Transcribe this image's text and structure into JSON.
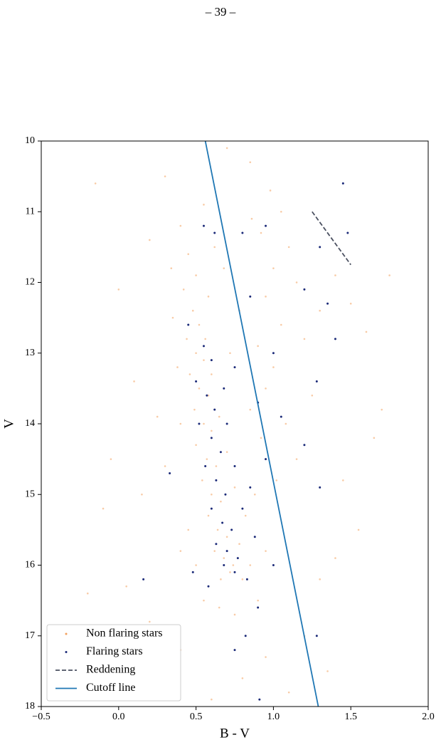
{
  "page_number": "– 39 –",
  "chart_data": {
    "type": "scatter",
    "xlabel": "B - V",
    "ylabel": "V",
    "xlim": [
      -0.5,
      2.0
    ],
    "ylim": [
      10,
      18
    ],
    "y_inverted": true,
    "xticks": [
      {
        "value": -0.5,
        "label": "−0.5"
      },
      {
        "value": 0,
        "label": "0.0"
      },
      0.5,
      {
        "value": 1,
        "label": "1.0"
      },
      1.5,
      {
        "value": 2,
        "label": "2.0"
      }
    ],
    "yticks": [
      10,
      11,
      12,
      13,
      14,
      15,
      16,
      17,
      18
    ],
    "legend": "lower left",
    "series": [
      {
        "name": "Non flaring stars",
        "color": "#f2a15c",
        "style": "points",
        "x": [
          0.4,
          0.45,
          0.5,
          0.42,
          0.48,
          0.52,
          0.44,
          0.5,
          0.55,
          0.46,
          0.52,
          0.58,
          0.49,
          0.55,
          0.6,
          0.5,
          0.57,
          0.63,
          0.54,
          0.6,
          0.66,
          0.58,
          0.64,
          0.7,
          0.62,
          0.68,
          0.74,
          0.66,
          0.72,
          0.8,
          0.85,
          0.78,
          0.82,
          0.75,
          0.7,
          0.65,
          0.6,
          0.56,
          0.58,
          0.62,
          0.55,
          0.35,
          0.38,
          0.4,
          0.3,
          0.45,
          0.5,
          0.55,
          0.65,
          0.75,
          0.9,
          0.95,
          0.88,
          0.92,
          0.85,
          0.95,
          1.0,
          0.9,
          1.05,
          0.95,
          1.0,
          1.1,
          0.92,
          1.05,
          0.98,
          1.15,
          1.2,
          1.08,
          1.15,
          1.25,
          1.3,
          1.4,
          1.5,
          1.6,
          1.7,
          1.45,
          1.3,
          1.2,
          1.35,
          1.1,
          0.95,
          0.8,
          0.6,
          0.4,
          0.2,
          0.05,
          -0.1,
          -0.2,
          -0.05,
          0.1,
          0.0,
          0.2,
          -0.15,
          0.3,
          0.85,
          0.7,
          1.65,
          1.75,
          0.4,
          0.72,
          0.78,
          0.68,
          0.86,
          1.02,
          0.34,
          0.25,
          0.15,
          1.55,
          1.4
        ],
        "values": [
          11.2,
          11.6,
          11.9,
          12.1,
          12.4,
          12.6,
          12.8,
          13.0,
          13.1,
          13.3,
          13.5,
          13.6,
          13.8,
          14.0,
          14.1,
          14.3,
          14.5,
          14.6,
          14.8,
          15.0,
          15.1,
          15.3,
          15.5,
          15.6,
          15.8,
          15.9,
          16.0,
          16.2,
          16.1,
          16.2,
          16.0,
          15.7,
          15.3,
          14.9,
          14.4,
          13.9,
          13.3,
          12.8,
          12.2,
          11.5,
          10.9,
          12.5,
          13.2,
          14.0,
          14.6,
          15.5,
          16.0,
          16.5,
          16.6,
          16.7,
          16.5,
          15.8,
          15.0,
          14.2,
          13.8,
          13.5,
          13.2,
          12.9,
          12.6,
          12.2,
          11.8,
          11.5,
          11.3,
          11.0,
          10.7,
          12.0,
          12.8,
          14.0,
          14.5,
          13.6,
          12.4,
          11.9,
          12.3,
          12.7,
          13.8,
          14.8,
          16.2,
          17.0,
          17.5,
          17.8,
          17.3,
          17.6,
          17.9,
          17.2,
          16.8,
          16.3,
          15.2,
          16.4,
          14.5,
          13.4,
          12.1,
          11.4,
          10.6,
          10.5,
          10.3,
          10.1,
          14.2,
          11.9,
          15.8,
          13.0,
          12.4,
          11.8,
          11.1,
          14.8,
          11.8,
          13.9,
          15.0,
          15.5,
          15.9
        ]
      },
      {
        "name": "Flaring stars",
        "color": "#1b2a78",
        "style": "points",
        "x": [
          0.55,
          0.62,
          0.8,
          0.95,
          1.45,
          1.48,
          1.3,
          0.85,
          1.2,
          1.35,
          0.45,
          0.55,
          0.6,
          0.5,
          0.57,
          0.62,
          0.52,
          0.6,
          0.66,
          0.56,
          0.63,
          0.69,
          0.6,
          0.67,
          0.73,
          0.63,
          0.7,
          0.77,
          0.68,
          0.75,
          0.83,
          0.88,
          0.8,
          0.75,
          0.7,
          0.68,
          0.75,
          0.9,
          1.0,
          1.05,
          0.95,
          0.85,
          1.0,
          0.9,
          0.82,
          0.75,
          1.2,
          1.28,
          1.3,
          0.16,
          0.33,
          0.48,
          0.91,
          1.28,
          1.4,
          0.58
        ],
        "values": [
          11.2,
          11.3,
          11.3,
          11.2,
          10.6,
          11.3,
          11.5,
          12.2,
          12.1,
          12.3,
          12.6,
          12.9,
          13.1,
          13.4,
          13.6,
          13.8,
          14.0,
          14.2,
          14.4,
          14.6,
          14.8,
          15.0,
          15.2,
          15.4,
          15.5,
          15.7,
          15.8,
          15.9,
          16.0,
          16.1,
          16.2,
          15.6,
          15.2,
          14.6,
          14.0,
          13.5,
          13.2,
          13.7,
          13.0,
          13.9,
          14.5,
          14.9,
          16.0,
          16.6,
          17.0,
          17.2,
          14.3,
          13.4,
          14.9,
          16.2,
          14.7,
          16.1,
          17.9,
          17.0,
          12.8,
          16.3
        ]
      },
      {
        "name": "Reddening",
        "color": "#4a5060",
        "style": "dashed",
        "x": [
          1.25,
          1.5
        ],
        "values": [
          11.0,
          11.75
        ]
      },
      {
        "name": "Cutoff line",
        "color": "#1f77b4",
        "style": "solid",
        "x": [
          0.56,
          1.29
        ],
        "values": [
          10,
          18
        ]
      }
    ]
  }
}
